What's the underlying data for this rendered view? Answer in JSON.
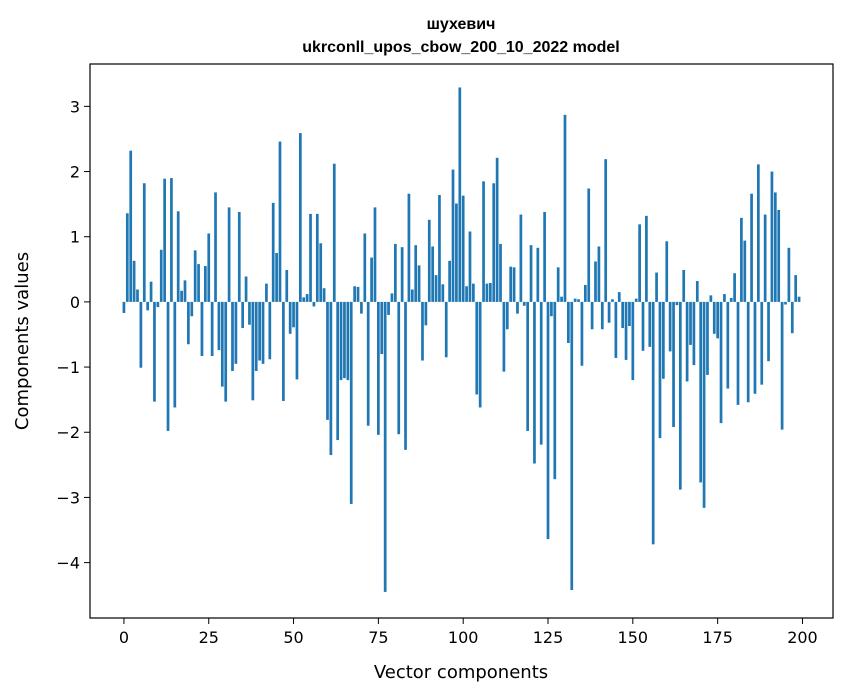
{
  "chart_data": {
    "type": "bar",
    "title": "шухевич",
    "subtitle": "ukrconll_upos_cbow_200_10_2022 model",
    "xlabel": "Vector components",
    "ylabel": "Components values",
    "xlim": [
      -10,
      209
    ],
    "ylim": [
      -4.85,
      3.65
    ],
    "xticks": [
      0,
      25,
      50,
      75,
      100,
      125,
      150,
      175,
      200
    ],
    "yticks": [
      -4,
      -3,
      -2,
      -1,
      0,
      1,
      2,
      3
    ],
    "ytick_labels": [
      "−4",
      "−3",
      "−2",
      "−1",
      "0",
      "1",
      "2",
      "3"
    ],
    "grid": false,
    "color": "#1f77b4",
    "x": [
      0,
      1,
      2,
      3,
      4,
      5,
      6,
      7,
      8,
      9,
      10,
      11,
      12,
      13,
      14,
      15,
      16,
      17,
      18,
      19,
      20,
      21,
      22,
      23,
      24,
      25,
      26,
      27,
      28,
      29,
      30,
      31,
      32,
      33,
      34,
      35,
      36,
      37,
      38,
      39,
      40,
      41,
      42,
      43,
      44,
      45,
      46,
      47,
      48,
      49,
      50,
      51,
      52,
      53,
      54,
      55,
      56,
      57,
      58,
      59,
      60,
      61,
      62,
      63,
      64,
      65,
      66,
      67,
      68,
      69,
      70,
      71,
      72,
      73,
      74,
      75,
      76,
      77,
      78,
      79,
      80,
      81,
      82,
      83,
      84,
      85,
      86,
      87,
      88,
      89,
      90,
      91,
      92,
      93,
      94,
      95,
      96,
      97,
      98,
      99,
      100,
      101,
      102,
      103,
      104,
      105,
      106,
      107,
      108,
      109,
      110,
      111,
      112,
      113,
      114,
      115,
      116,
      117,
      118,
      119,
      120,
      121,
      122,
      123,
      124,
      125,
      126,
      127,
      128,
      129,
      130,
      131,
      132,
      133,
      134,
      135,
      136,
      137,
      138,
      139,
      140,
      141,
      142,
      143,
      144,
      145,
      146,
      147,
      148,
      149,
      150,
      151,
      152,
      153,
      154,
      155,
      156,
      157,
      158,
      159,
      160,
      161,
      162,
      163,
      164,
      165,
      166,
      167,
      168,
      169,
      170,
      171,
      172,
      173,
      174,
      175,
      176,
      177,
      178,
      179,
      180,
      181,
      182,
      183,
      184,
      185,
      186,
      187,
      188,
      189,
      190,
      191,
      192,
      193,
      194,
      195,
      196,
      197,
      198,
      199
    ],
    "values": [
      -0.17,
      1.36,
      2.32,
      0.63,
      0.19,
      -1.01,
      1.82,
      -0.13,
      0.31,
      -1.53,
      -0.08,
      0.8,
      1.89,
      -1.98,
      1.9,
      -1.62,
      1.39,
      0.17,
      0.33,
      -0.65,
      -0.22,
      0.79,
      0.58,
      -0.83,
      0.55,
      1.05,
      -0.83,
      1.68,
      -0.74,
      -1.3,
      -1.53,
      1.45,
      -1.06,
      -0.95,
      1.38,
      -0.4,
      0.39,
      -0.35,
      -1.51,
      -1.06,
      -0.9,
      -0.95,
      0.28,
      -0.88,
      1.52,
      0.75,
      2.46,
      -1.52,
      0.49,
      -0.49,
      -0.39,
      -1.19,
      2.59,
      0.07,
      0.12,
      1.35,
      -0.07,
      1.35,
      0.9,
      0.21,
      -1.81,
      -2.35,
      2.12,
      -2.12,
      -1.2,
      -1.17,
      -1.2,
      -3.1,
      0.24,
      0.23,
      -0.18,
      1.05,
      -1.9,
      0.68,
      1.45,
      -2.04,
      -0.8,
      -4.45,
      -0.2,
      0.13,
      0.89,
      -2.03,
      0.84,
      -2.27,
      1.66,
      0.19,
      0.87,
      0.56,
      -0.9,
      -0.36,
      1.26,
      0.85,
      0.41,
      1.64,
      0.27,
      -0.85,
      0.63,
      2.03,
      1.51,
      3.29,
      1.63,
      0.24,
      1.08,
      0.28,
      -1.42,
      -1.62,
      1.85,
      0.28,
      0.29,
      1.82,
      2.21,
      0.89,
      -1.07,
      -0.42,
      0.54,
      0.53,
      -0.18,
      1.34,
      -0.06,
      -1.98,
      0.87,
      -2.48,
      0.83,
      -2.19,
      1.38,
      -3.64,
      -0.22,
      -2.72,
      0.53,
      0.08,
      2.87,
      -0.63,
      -4.42,
      0.05,
      0.04,
      -0.98,
      0.26,
      1.74,
      -0.42,
      0.62,
      0.85,
      -0.42,
      2.19,
      -0.32,
      0.04,
      -0.86,
      0.15,
      -0.4,
      -0.89,
      -0.37,
      -1.2,
      0.05,
      1.19,
      -0.75,
      1.32,
      -0.69,
      -3.72,
      0.45,
      -2.09,
      -1.18,
      0.93,
      -0.76,
      -1.92,
      -0.05,
      -2.88,
      0.49,
      -1.22,
      -0.66,
      -0.97,
      0.32,
      -2.77,
      -3.16,
      -1.12,
      0.1,
      -0.49,
      -0.56,
      -1.86,
      0.12,
      -1.33,
      0.06,
      0.44,
      -1.58,
      1.29,
      0.94,
      -1.54,
      1.66,
      -1.41,
      2.11,
      -1.27,
      1.34,
      -0.91,
      2.0,
      1.68,
      1.41,
      -1.96,
      -0.04,
      0.83,
      -0.48,
      0.41,
      0.08
    ]
  }
}
